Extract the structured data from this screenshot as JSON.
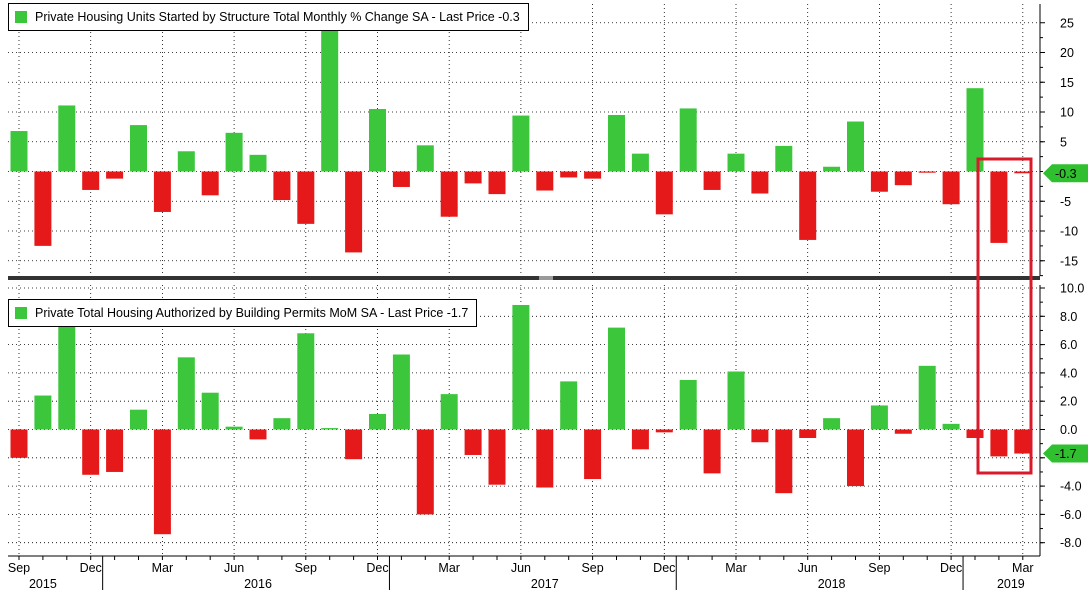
{
  "colors": {
    "positive": "#3cc63c",
    "negative": "#e51919",
    "highlight": "#d91a2a",
    "marker": "#2fbf2f",
    "grid": "#000000"
  },
  "chart_data": [
    {
      "type": "bar",
      "legend": "Private Housing Units Started by Structure Total Monthly % Change SA - Last Price -0.3",
      "last_price_label": "-0.3",
      "y_ticks": [
        "25",
        "20",
        "15",
        "10",
        "5",
        "-5",
        "-10",
        "-15"
      ],
      "ylim": [
        -19,
        24
      ],
      "values": [
        6.8,
        -12.5,
        11.1,
        -3.1,
        -1.2,
        7.8,
        -6.8,
        3.4,
        -4.0,
        6.5,
        2.8,
        -4.8,
        -8.8,
        24.5,
        -13.6,
        10.5,
        -2.6,
        4.4,
        -7.6,
        -2.0,
        -3.8,
        9.4,
        -3.2,
        -1.0,
        -1.2,
        9.5,
        3.0,
        -7.2,
        10.6,
        -3.1,
        3.0,
        -3.7,
        4.3,
        -11.5,
        0.8,
        8.4,
        -3.4,
        -2.3,
        -0.2,
        -5.5,
        14.0,
        -12.0,
        -0.3
      ]
    },
    {
      "type": "bar",
      "legend": "Private Total Housing Authorized by Building Permits MoM SA - Last Price -1.7",
      "last_price_label": "-1.7",
      "y_ticks": [
        "10.0",
        "8.0",
        "6.0",
        "4.0",
        "2.0",
        "0.0",
        "-2.0",
        "-4.0",
        "-6.0",
        "-8.0"
      ],
      "ylim": [
        -8.9,
        10.2
      ],
      "values": [
        -2.0,
        2.4,
        7.3,
        -3.2,
        -3.0,
        1.4,
        -7.4,
        5.1,
        2.6,
        0.2,
        -0.7,
        0.8,
        6.8,
        0.1,
        -2.1,
        1.1,
        5.3,
        -6.0,
        2.5,
        -1.8,
        -3.9,
        8.8,
        -4.1,
        3.4,
        -3.5,
        7.2,
        -1.4,
        -0.2,
        3.5,
        -3.1,
        4.1,
        -0.9,
        -4.5,
        -0.6,
        0.8,
        -4.0,
        1.7,
        -0.3,
        4.5,
        0.4,
        -0.6,
        -1.9,
        -1.7
      ]
    }
  ],
  "x_month_labels": [
    "Sep",
    "Dec",
    "Mar",
    "Jun",
    "Sep",
    "Dec",
    "Mar",
    "Jun",
    "Sep",
    "Dec",
    "Mar",
    "Jun",
    "Sep",
    "Dec",
    "Mar"
  ],
  "x_year_labels": [
    "2015",
    "2016",
    "2017",
    "2018",
    "2019"
  ]
}
